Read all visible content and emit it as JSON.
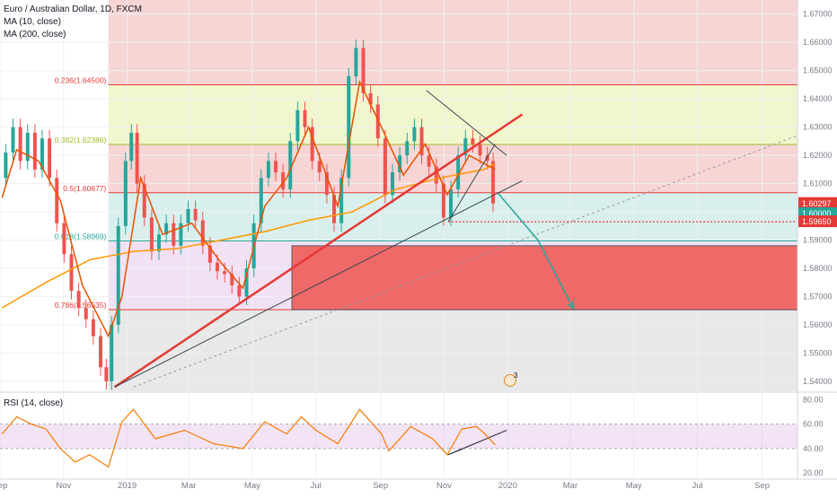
{
  "header": {
    "symbol_line": "Euro / Australian Dollar, 1D, FXCM",
    "ma1": "MA (10, close)",
    "ma2": "MA (200, close)",
    "rsi": "RSI (14, close)"
  },
  "chart_data": {
    "type": "line",
    "price_axis": {
      "ylim": [
        1.5365,
        1.675
      ],
      "ticks": [
        "1.54000",
        "1.55000",
        "1.56000",
        "1.57000",
        "1.58000",
        "1.59000",
        "1.60000",
        "1.61000",
        "1.62000",
        "1.63000",
        "1.64000",
        "1.65000",
        "1.66000",
        "1.67000"
      ]
    },
    "rsi_axis": {
      "ylim": [
        15,
        84
      ],
      "ticks": [
        "20.00",
        "40.00",
        "60.00",
        "80.00"
      ],
      "band": [
        40,
        60
      ]
    },
    "time_axis": {
      "xlim": [
        "2018-09-01",
        "2020-10-05"
      ],
      "labels": [
        {
          "date": "2018-09-01",
          "text": "Sep"
        },
        {
          "date": "2018-11-01",
          "text": "Nov"
        },
        {
          "date": "2019-01-01",
          "text": "2019"
        },
        {
          "date": "2019-03-01",
          "text": "Mar"
        },
        {
          "date": "2019-05-01",
          "text": "May"
        },
        {
          "date": "2019-07-01",
          "text": "Jul"
        },
        {
          "date": "2019-09-01",
          "text": "Sep"
        },
        {
          "date": "2019-11-01",
          "text": "Nov"
        },
        {
          "date": "2020-01-01",
          "text": "2020"
        },
        {
          "date": "2020-03-01",
          "text": "Mar"
        },
        {
          "date": "2020-05-01",
          "text": "May"
        },
        {
          "date": "2020-07-01",
          "text": "Jul"
        },
        {
          "date": "2020-09-01",
          "text": "Sep"
        }
      ]
    },
    "price_path": [
      [
        "2018-09-03",
        1.612
      ],
      [
        "2018-09-10",
        1.621
      ],
      [
        "2018-09-17",
        1.63
      ],
      [
        "2018-09-24",
        1.618
      ],
      [
        "2018-10-01",
        1.628
      ],
      [
        "2018-10-08",
        1.615
      ],
      [
        "2018-10-15",
        1.626
      ],
      [
        "2018-10-22",
        1.612
      ],
      [
        "2018-10-29",
        1.596
      ],
      [
        "2018-11-05",
        1.585
      ],
      [
        "2018-11-12",
        1.572
      ],
      [
        "2018-11-19",
        1.566
      ],
      [
        "2018-11-26",
        1.562
      ],
      [
        "2018-12-03",
        1.556
      ],
      [
        "2018-12-10",
        1.545
      ],
      [
        "2018-12-14",
        1.54
      ],
      [
        "2018-12-20",
        1.56
      ],
      [
        "2018-12-27",
        1.595
      ],
      [
        "2019-01-03",
        1.618
      ],
      [
        "2019-01-07",
        1.628
      ],
      [
        "2019-01-14",
        1.61
      ],
      [
        "2019-01-21",
        1.598
      ],
      [
        "2019-01-28",
        1.586
      ],
      [
        "2019-02-04",
        1.592
      ],
      [
        "2019-02-11",
        1.596
      ],
      [
        "2019-02-18",
        1.588
      ],
      [
        "2019-02-25",
        1.596
      ],
      [
        "2019-03-04",
        1.601
      ],
      [
        "2019-03-11",
        1.597
      ],
      [
        "2019-03-18",
        1.588
      ],
      [
        "2019-03-25",
        1.582
      ],
      [
        "2019-04-01",
        1.579
      ],
      [
        "2019-04-08",
        1.578
      ],
      [
        "2019-04-15",
        1.574
      ],
      [
        "2019-04-22",
        1.57
      ],
      [
        "2019-04-29",
        1.58
      ],
      [
        "2019-05-06",
        1.596
      ],
      [
        "2019-05-13",
        1.612
      ],
      [
        "2019-05-20",
        1.618
      ],
      [
        "2019-05-27",
        1.614
      ],
      [
        "2019-06-03",
        1.608
      ],
      [
        "2019-06-10",
        1.625
      ],
      [
        "2019-06-17",
        1.636
      ],
      [
        "2019-06-24",
        1.63
      ],
      [
        "2019-07-01",
        1.618
      ],
      [
        "2019-07-08",
        1.614
      ],
      [
        "2019-07-15",
        1.606
      ],
      [
        "2019-07-22",
        1.596
      ],
      [
        "2019-07-29",
        1.612
      ],
      [
        "2019-08-05",
        1.648
      ],
      [
        "2019-08-12",
        1.658
      ],
      [
        "2019-08-19",
        1.642
      ],
      [
        "2019-08-26",
        1.638
      ],
      [
        "2019-09-02",
        1.626
      ],
      [
        "2019-09-09",
        1.606
      ],
      [
        "2019-09-16",
        1.614
      ],
      [
        "2019-09-23",
        1.62
      ],
      [
        "2019-09-30",
        1.625
      ],
      [
        "2019-10-07",
        1.63
      ],
      [
        "2019-10-14",
        1.62
      ],
      [
        "2019-10-21",
        1.616
      ],
      [
        "2019-10-28",
        1.61
      ],
      [
        "2019-11-04",
        1.598
      ],
      [
        "2019-11-11",
        1.608
      ],
      [
        "2019-11-18",
        1.62
      ],
      [
        "2019-11-25",
        1.626
      ],
      [
        "2019-12-02",
        1.624
      ],
      [
        "2019-12-09",
        1.62
      ],
      [
        "2019-12-16",
        1.618
      ],
      [
        "2019-12-20",
        1.60297
      ]
    ],
    "ma10_path": [
      [
        "2018-09-03",
        1.605
      ],
      [
        "2018-09-17",
        1.622
      ],
      [
        "2018-10-08",
        1.618
      ],
      [
        "2018-10-29",
        1.604
      ],
      [
        "2018-11-19",
        1.574
      ],
      [
        "2018-12-14",
        1.556
      ],
      [
        "2018-12-27",
        1.57
      ],
      [
        "2019-01-14",
        1.612
      ],
      [
        "2019-02-04",
        1.592
      ],
      [
        "2019-03-04",
        1.596
      ],
      [
        "2019-04-01",
        1.582
      ],
      [
        "2019-04-22",
        1.573
      ],
      [
        "2019-05-13",
        1.602
      ],
      [
        "2019-06-03",
        1.612
      ],
      [
        "2019-06-24",
        1.63
      ],
      [
        "2019-07-22",
        1.602
      ],
      [
        "2019-08-12",
        1.646
      ],
      [
        "2019-09-02",
        1.63
      ],
      [
        "2019-09-23",
        1.613
      ],
      [
        "2019-10-14",
        1.624
      ],
      [
        "2019-11-04",
        1.606
      ],
      [
        "2019-11-25",
        1.62
      ],
      [
        "2019-12-20",
        1.615
      ]
    ],
    "ma200_path": [
      [
        "2018-09-03",
        1.566
      ],
      [
        "2018-10-15",
        1.575
      ],
      [
        "2018-11-26",
        1.583
      ],
      [
        "2019-01-07",
        1.586
      ],
      [
        "2019-02-18",
        1.587
      ],
      [
        "2019-04-01",
        1.59
      ],
      [
        "2019-05-13",
        1.593
      ],
      [
        "2019-06-24",
        1.597
      ],
      [
        "2019-08-05",
        1.6
      ],
      [
        "2019-09-16",
        1.608
      ],
      [
        "2019-10-28",
        1.612
      ],
      [
        "2019-12-09",
        1.615
      ],
      [
        "2019-12-20",
        1.617
      ]
    ],
    "rsi_path": [
      [
        "2018-09-03",
        52
      ],
      [
        "2018-09-17",
        66
      ],
      [
        "2018-10-01",
        60
      ],
      [
        "2018-10-15",
        56
      ],
      [
        "2018-10-29",
        40
      ],
      [
        "2018-11-12",
        29
      ],
      [
        "2018-11-26",
        35
      ],
      [
        "2018-12-14",
        25
      ],
      [
        "2018-12-27",
        62
      ],
      [
        "2019-01-07",
        72
      ],
      [
        "2019-01-28",
        48
      ],
      [
        "2019-02-25",
        55
      ],
      [
        "2019-03-25",
        44
      ],
      [
        "2019-04-22",
        40
      ],
      [
        "2019-05-13",
        62
      ],
      [
        "2019-06-03",
        52
      ],
      [
        "2019-06-17",
        66
      ],
      [
        "2019-07-01",
        55
      ],
      [
        "2019-07-22",
        44
      ],
      [
        "2019-08-12",
        72
      ],
      [
        "2019-09-02",
        52
      ],
      [
        "2019-09-09",
        38
      ],
      [
        "2019-09-30",
        58
      ],
      [
        "2019-10-21",
        48
      ],
      [
        "2019-11-04",
        35
      ],
      [
        "2019-11-18",
        56
      ],
      [
        "2019-12-02",
        58
      ],
      [
        "2019-12-09",
        53
      ],
      [
        "2019-12-20",
        43
      ]
    ],
    "fib_levels": [
      {
        "label": "0.236(1.64500)",
        "value": 1.645,
        "color": "#e53935"
      },
      {
        "label": "0.382(1.62386)",
        "value": 1.62386,
        "color": "#a4b82a"
      },
      {
        "label": "0.5(1.60677)",
        "value": 1.60677,
        "color": "#e53935"
      },
      {
        "label": "0.618(1.58969)",
        "value": 1.58969,
        "color": "#26a69a"
      },
      {
        "label": "0.786(1.56535)",
        "value": 1.56535,
        "color": "#e53935"
      }
    ],
    "zones": [
      {
        "from": 1.645,
        "to": 1.675,
        "color": "rgba(229,115,115,0.30)"
      },
      {
        "from": 1.62386,
        "to": 1.645,
        "color": "rgba(205,220,57,0.25)"
      },
      {
        "from": 1.60677,
        "to": 1.62386,
        "color": "rgba(229,115,115,0.30)"
      },
      {
        "from": 1.58969,
        "to": 1.60677,
        "color": "rgba(128,203,196,0.30)"
      },
      {
        "from": 1.56535,
        "to": 1.58969,
        "color": "rgba(206,147,216,0.28)"
      },
      {
        "from": 1.5365,
        "to": 1.56535,
        "color": "rgba(189,189,189,0.35)"
      }
    ],
    "target_box": {
      "x0": "2019-06-08",
      "x1": "2020-10-05",
      "y0": 1.56535,
      "y1": 1.588,
      "color": "#ef5350"
    },
    "lines": [
      {
        "name": "main-uptrend",
        "x0": "2018-12-20",
        "y0": 1.538,
        "x1": "2020-01-15",
        "y1": 1.6345,
        "color": "#e53935",
        "width": 2.5
      },
      {
        "name": "secondary-uptrend",
        "x0": "2018-12-20",
        "y0": 1.538,
        "x1": "2020-01-15",
        "y1": 1.611,
        "color": "#37474f",
        "width": 1
      },
      {
        "name": "dashed-uptrend",
        "x0": "2019-01-07",
        "y0": 1.538,
        "x1": "2020-10-05",
        "y1": 1.627,
        "color": "#9e9e9e",
        "width": 1,
        "dash": "3,3"
      },
      {
        "name": "triangle-upper",
        "x0": "2019-10-15",
        "y0": 1.643,
        "x1": "2019-12-31",
        "y1": 1.62,
        "color": "#37474f",
        "width": 1
      },
      {
        "name": "triangle-lower",
        "x0": "2019-11-05",
        "y0": 1.5965,
        "x1": "2019-12-20",
        "y1": 1.624,
        "color": "#37474f",
        "width": 1
      },
      {
        "name": "support-dashed",
        "x0": "2019-11-05",
        "y0": 1.5965,
        "x1": "2020-10-05",
        "y1": 1.5965,
        "color": "#e53935",
        "width": 1.3,
        "dash": "2,2"
      },
      {
        "name": "rsi-trend",
        "x0": "2019-11-05",
        "y0": 35,
        "x1": "2019-12-31",
        "y1": 55,
        "color": "#131722",
        "width": 1.2,
        "pane": "rsi"
      }
    ],
    "projection": [
      [
        "2019-12-23",
        1.6065
      ],
      [
        "2020-01-30",
        1.59
      ],
      [
        "2020-03-04",
        1.5658
      ]
    ],
    "markers": {
      "event_date": "2019-12-17",
      "event_price": 1.5445,
      "event_count": "3"
    },
    "last_prices": [
      {
        "label": "1.60297",
        "value": 1.60297,
        "color": "#e53935"
      },
      {
        "label": "1.60000",
        "value": 1.6,
        "color": "#26a69a"
      },
      {
        "label": "1.59650",
        "value": 1.5965,
        "color": "#e53935"
      }
    ],
    "colors": {
      "up": "#26a69a",
      "down": "#ef5350",
      "ma10": "#e65100",
      "ma200": "#ff9800",
      "rsi": "#f57c00",
      "grid": "#eef0f3",
      "axis": "#787b86"
    }
  }
}
